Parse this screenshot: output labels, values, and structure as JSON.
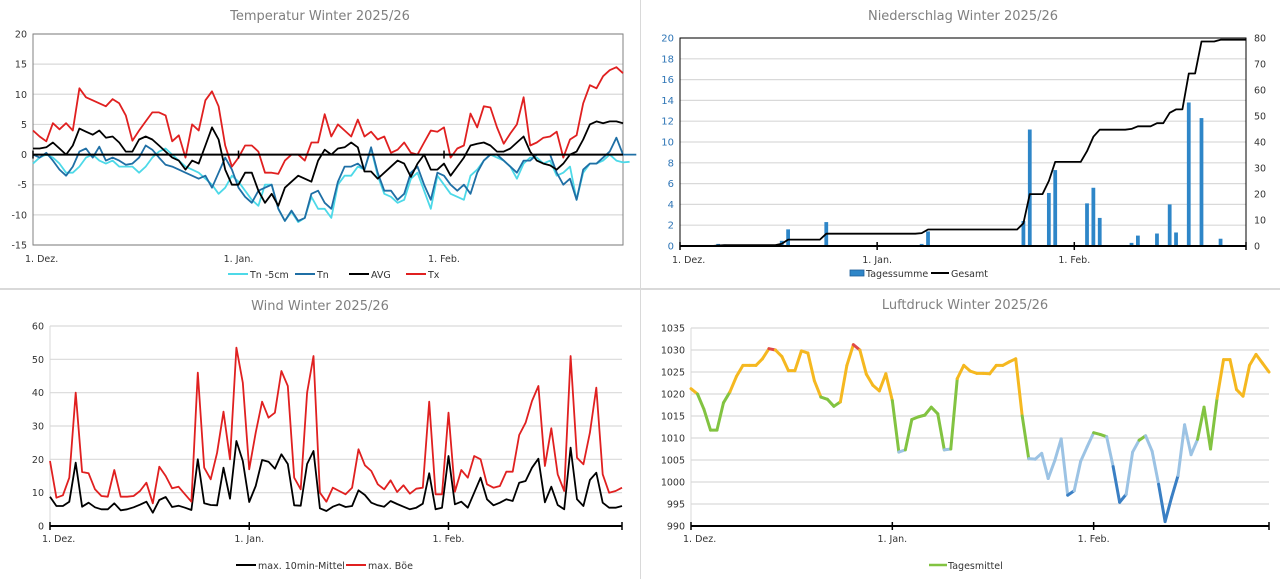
{
  "chart_data": [
    {
      "id": "temp",
      "type": "line",
      "title": "Temperatur Winter 2025/26",
      "xlabel": "",
      "ylabel": "",
      "x_start": "1. Dez.",
      "days": 90,
      "x_ticks": [
        {
          "day": 0,
          "label": "1. Dez."
        },
        {
          "day": 31,
          "label": "1. Jan."
        },
        {
          "day": 62,
          "label": "1. Feb."
        }
      ],
      "ylim": [
        -15,
        20
      ],
      "y_ticks": [
        20,
        15,
        10,
        5,
        0,
        -5,
        -10,
        -15
      ],
      "grid": true,
      "zero_line": true,
      "legend_position": "bottom",
      "series": [
        {
          "name": "Tn -5cm",
          "color": "#4dd9e8",
          "values": [
            -1.5,
            -0.5,
            0,
            -0.5,
            -1.5,
            -3,
            -3,
            -2,
            -0.5,
            0,
            -1,
            -1.5,
            -1,
            -2,
            -2,
            -2,
            -3,
            -2,
            -0.5,
            0.5,
            1,
            0,
            -1,
            -2,
            -2.5,
            -3,
            -4,
            -5,
            -6.5,
            -5.5,
            -3.5,
            -4.5,
            -6,
            -7.5,
            -8.5,
            -5,
            -5,
            -9,
            -11,
            -9.5,
            -11.2,
            -10.5,
            -7,
            -9,
            -9,
            -10.5,
            -5,
            -3.5,
            -3.5,
            -2,
            -2.5,
            1,
            -3.5,
            -6.5,
            -7,
            -8,
            -7.5,
            -4,
            -3,
            -6,
            -9,
            -3.5,
            -5,
            -6.5,
            -7,
            -7.5,
            -3.5,
            -2.5,
            -1,
            0,
            -0.5,
            -1,
            -2,
            -4,
            -1.5,
            -0.5,
            -0.5,
            -1.5,
            -1,
            -3.5,
            -3,
            -2,
            -7.5,
            -3,
            -1.5,
            -1.5,
            -1,
            0,
            -1,
            -1.3,
            -1.2
          ]
        },
        {
          "name": "Tn",
          "color": "#1f6fa5",
          "values": [
            0,
            -0.5,
            0.3,
            -1,
            -2.5,
            -3.5,
            -2,
            0.5,
            1,
            -0.5,
            1.3,
            -1,
            -0.5,
            -1,
            -1.7,
            -1.5,
            -0.5,
            1.5,
            0.8,
            -0.5,
            -1.7,
            -2,
            -2.5,
            -3,
            -3.5,
            -4,
            -3.5,
            -5.5,
            -3,
            -0.5,
            -2.5,
            -5.5,
            -7,
            -8,
            -6,
            -5.5,
            -5,
            -9,
            -11,
            -9.3,
            -11,
            -10.5,
            -6.5,
            -6,
            -8,
            -9,
            -4.5,
            -2,
            -2,
            -1.5,
            -2.5,
            1.2,
            -3,
            -6,
            -6,
            -7.5,
            -6.5,
            -3,
            -2,
            -5,
            -7.5,
            -3,
            -3.5,
            -5,
            -6,
            -5,
            -6.5,
            -3,
            -1,
            0,
            0,
            -1,
            -2,
            -3,
            -1,
            -1,
            0,
            0,
            0,
            -3,
            -5,
            -4,
            -7.5,
            -2.5,
            -1.5,
            -1.5,
            -0.5,
            0.5,
            2.8,
            0,
            0,
            0
          ]
        },
        {
          "name": "AVG",
          "color": "#000000",
          "values": [
            1,
            1,
            1.2,
            2,
            1,
            0,
            1.5,
            4.3,
            3.8,
            3.3,
            4,
            2.8,
            3,
            2,
            0.5,
            0.5,
            2.5,
            3,
            2.5,
            1.5,
            0.5,
            -0.5,
            -1,
            -2.5,
            -1,
            -1.5,
            1.5,
            4.5,
            2.5,
            -2.5,
            -5,
            -5,
            -3,
            -3,
            -6,
            -8,
            -6.5,
            -8.5,
            -5.5,
            -4.5,
            -3.5,
            -4,
            -4.5,
            -1,
            0.8,
            0,
            1,
            1.2,
            2,
            1.2,
            -2.8,
            -2.8,
            -4,
            -3,
            -2,
            -1,
            -1.5,
            -3.7,
            -1.5,
            0,
            -2.5,
            -2.5,
            -1.5,
            -3.5,
            -2,
            -0.5,
            1.5,
            1.8,
            2,
            1.5,
            0.5,
            0.5,
            1,
            2,
            3,
            0.5,
            -1,
            -1.5,
            -1.8,
            -2.5,
            -1.5,
            0,
            0.5,
            2.5,
            5,
            5.5,
            5.2,
            5.5,
            5.5,
            5.2
          ]
        },
        {
          "name": "Tx",
          "color": "#e02020",
          "values": [
            4,
            3,
            2.2,
            5.2,
            4.2,
            5.2,
            4,
            11,
            9.5,
            9,
            8.5,
            8,
            9.2,
            8.5,
            6.5,
            2.3,
            4,
            5.5,
            7,
            7,
            6.5,
            2.2,
            3.2,
            -0.5,
            5,
            4,
            9,
            10.5,
            8,
            1.5,
            -2,
            -0.5,
            1.5,
            1.5,
            0.5,
            -3,
            -3,
            -3.2,
            -1,
            0,
            0,
            -1,
            2,
            2,
            6.7,
            3,
            5,
            4,
            3,
            5.8,
            3,
            3.8,
            2.5,
            3,
            0.3,
            0.8,
            2,
            0.3,
            0,
            2,
            4,
            3.8,
            4.5,
            -0.5,
            1,
            1.5,
            6.8,
            4.5,
            8,
            7.8,
            4.5,
            1.8,
            3.5,
            5,
            9.5,
            1.5,
            2,
            2.8,
            3,
            3.8,
            -0.5,
            2.5,
            3.2,
            8.5,
            11.5,
            11,
            13,
            14,
            14.5,
            13.5
          ]
        }
      ]
    },
    {
      "id": "prec",
      "type": "bar",
      "title": "Niederschlag Winter 2025/26",
      "x_start": "1. Dez.",
      "days": 90,
      "x_ticks": [
        {
          "day": 0,
          "label": "1. Dez."
        },
        {
          "day": 31,
          "label": "1. Jan."
        },
        {
          "day": 62,
          "label": "1. Feb."
        }
      ],
      "ylim": [
        0,
        20
      ],
      "y_ticks": [
        0,
        2,
        4,
        6,
        8,
        10,
        12,
        14,
        16,
        18,
        20
      ],
      "y2lim": [
        0,
        80
      ],
      "y2_ticks": [
        0,
        10,
        20,
        30,
        40,
        50,
        60,
        70,
        80
      ],
      "grid": true,
      "legend_position": "bottom",
      "series": [
        {
          "name": "Tagessumme",
          "type": "bar",
          "color": "#2e86c8",
          "points": [
            [
              6,
              0.2
            ],
            [
              7,
              0.15
            ],
            [
              16,
              0.5
            ],
            [
              17,
              1.6
            ],
            [
              23,
              2.3
            ],
            [
              38,
              0.2
            ],
            [
              39,
              1.4
            ],
            [
              54,
              2.4
            ],
            [
              55,
              11.2
            ],
            [
              58,
              5.1
            ],
            [
              59,
              7.3
            ],
            [
              64,
              4.1
            ],
            [
              65,
              5.6
            ],
            [
              66,
              2.7
            ],
            [
              71,
              0.3
            ],
            [
              72,
              1.0
            ],
            [
              75,
              1.2
            ],
            [
              77,
              4.0
            ],
            [
              78,
              1.3
            ],
            [
              80,
              13.8
            ],
            [
              82,
              12.3
            ],
            [
              85,
              0.7
            ]
          ]
        },
        {
          "name": "Gesamt",
          "type": "line",
          "axis": "right",
          "color": "#000000",
          "points": [
            [
              0,
              0
            ],
            [
              5,
              0
            ],
            [
              6,
              0.2
            ],
            [
              7,
              0.35
            ],
            [
              15,
              0.35
            ],
            [
              16,
              0.85
            ],
            [
              17,
              2.45
            ],
            [
              22,
              2.45
            ],
            [
              23,
              4.75
            ],
            [
              37,
              4.75
            ],
            [
              38,
              4.95
            ],
            [
              39,
              6.35
            ],
            [
              53,
              6.35
            ],
            [
              54,
              8.75
            ],
            [
              55,
              19.95
            ],
            [
              57,
              19.95
            ],
            [
              58,
              25.05
            ],
            [
              59,
              32.35
            ],
            [
              63,
              32.35
            ],
            [
              64,
              36.45
            ],
            [
              65,
              42.05
            ],
            [
              66,
              44.75
            ],
            [
              70,
              44.75
            ],
            [
              71,
              45.05
            ],
            [
              72,
              46.05
            ],
            [
              74,
              46.05
            ],
            [
              75,
              47.25
            ],
            [
              76,
              47.25
            ],
            [
              77,
              51.25
            ],
            [
              78,
              52.55
            ],
            [
              79,
              52.55
            ],
            [
              80,
              66.35
            ],
            [
              81,
              66.35
            ],
            [
              82,
              78.65
            ],
            [
              84,
              78.65
            ],
            [
              85,
              79.35
            ],
            [
              89,
              79.35
            ]
          ]
        }
      ]
    },
    {
      "id": "wind",
      "type": "line",
      "title": "Wind Winter 2025/26",
      "x_start": "1. Dez.",
      "days": 90,
      "x_ticks": [
        {
          "day": 0,
          "label": "1. Dez."
        },
        {
          "day": 31,
          "label": "1. Jan."
        },
        {
          "day": 62,
          "label": "1. Feb."
        }
      ],
      "ylim": [
        0,
        60
      ],
      "y_ticks": [
        0,
        10,
        20,
        30,
        40,
        50,
        60
      ],
      "grid": true,
      "legend_position": "bottom",
      "series": [
        {
          "name": "max. 10min-Mittel",
          "color": "#000000",
          "values": [
            8.8,
            6,
            6,
            7.3,
            19,
            5.8,
            7,
            5.6,
            5,
            5,
            6.8,
            4.7,
            5,
            5.6,
            6.4,
            7.3,
            4,
            7.8,
            8.7,
            5.7,
            6.1,
            5.5,
            4.8,
            20,
            6.8,
            6.3,
            6.2,
            17.5,
            8.2,
            25.5,
            19.5,
            7.2,
            12,
            19.8,
            19.3,
            17.2,
            21.5,
            18.6,
            6.2,
            6.1,
            18.6,
            22.5,
            5.3,
            4.5,
            5.8,
            6.5,
            5.7,
            6,
            10.7,
            9.3,
            7,
            6.2,
            5.8,
            7.5,
            6.6,
            5.8,
            5,
            5.5,
            6.7,
            15.8,
            5,
            5.5,
            21,
            6.5,
            7.3,
            5.5,
            10,
            14.5,
            8,
            6.2,
            7,
            8,
            7.5,
            13,
            13.5,
            17.5,
            20.2,
            7.1,
            11.8,
            6.3,
            5,
            23.5,
            8,
            6,
            13.8,
            16,
            7,
            5.5,
            5.5,
            6
          ]
        },
        {
          "name": "max. Böe",
          "color": "#e02020",
          "values": [
            19.5,
            8.5,
            9.2,
            14.5,
            40,
            16.2,
            15.8,
            11,
            9,
            8.8,
            16.8,
            8.8,
            8.8,
            9,
            10.5,
            13,
            6.8,
            17.8,
            15,
            11.3,
            11.8,
            9.5,
            7.3,
            46,
            17.5,
            14,
            22,
            34.3,
            20,
            53.5,
            43,
            17,
            28,
            37.3,
            32.5,
            34,
            46.5,
            42,
            14.5,
            11,
            40,
            51,
            10,
            7.3,
            11.5,
            10.5,
            9.5,
            11.5,
            23,
            18.2,
            16.5,
            12.5,
            11,
            13.7,
            10.2,
            12.2,
            9.7,
            11.2,
            11.5,
            37.3,
            9.5,
            9.5,
            34,
            10.3,
            16.8,
            14.5,
            21,
            20,
            12.5,
            11.5,
            12,
            16.3,
            16.3,
            27.3,
            31,
            37.5,
            42,
            18,
            29.3,
            15.5,
            10.5,
            51,
            20.5,
            18.5,
            28,
            41.5,
            15.5,
            10,
            10.5,
            11.5
          ]
        }
      ]
    },
    {
      "id": "pres",
      "type": "line",
      "title": "Luftdruck Winter 2025/26",
      "x_start": "1. Dez.",
      "days": 90,
      "x_ticks": [
        {
          "day": 0,
          "label": "1. Dez."
        },
        {
          "day": 31,
          "label": "1. Jan."
        },
        {
          "day": 62,
          "label": "1. Feb."
        }
      ],
      "ylim": [
        990,
        1035
      ],
      "y_ticks": [
        990,
        995,
        1000,
        1005,
        1010,
        1015,
        1020,
        1025,
        1030,
        1035
      ],
      "grid": true,
      "legend_position": "bottom",
      "color_bands": [
        {
          "min": 1030,
          "color": "#e04848"
        },
        {
          "min": 1020,
          "color": "#f5b820"
        },
        {
          "min": 1010,
          "color": "#82c341"
        },
        {
          "min": 1000,
          "color": "#9cc3e4"
        },
        {
          "min": 0,
          "color": "#3a7fc4"
        }
      ],
      "series": [
        {
          "name": "Tagesmittel",
          "color": "#82c341",
          "values": [
            1021.2,
            1020,
            1016.5,
            1011.8,
            1011.8,
            1018,
            1020.5,
            1024,
            1026.5,
            1026.5,
            1026.5,
            1028,
            1030.3,
            1030,
            1028.5,
            1025.3,
            1025.3,
            1029.8,
            1029.3,
            1023,
            1019.3,
            1018.8,
            1017.2,
            1018.2,
            1026.5,
            1031.2,
            1030,
            1024.5,
            1022,
            1020.7,
            1024.6,
            1018.5,
            1006.8,
            1007.3,
            1014.2,
            1014.8,
            1015.2,
            1017,
            1015.5,
            1007.3,
            1007.5,
            1023.5,
            1026.5,
            1025.2,
            1024.7,
            1024.7,
            1024.6,
            1026.5,
            1026.5,
            1027.3,
            1028,
            1015,
            1005.3,
            1005.2,
            1006.5,
            1000.8,
            1004.8,
            1009.8,
            997,
            998,
            1004.7,
            1008,
            1011.2,
            1010.8,
            1010.3,
            1003.5,
            995.4,
            997.2,
            1006.8,
            1009.5,
            1010.5,
            1007,
            999.5,
            991,
            996.5,
            1001.5,
            1013,
            1006.2,
            1009.7,
            1017,
            1007.5,
            1019,
            1027.8,
            1027.8,
            1021,
            1019.5,
            1026.5,
            1029,
            1027,
            1025
          ]
        }
      ]
    }
  ]
}
